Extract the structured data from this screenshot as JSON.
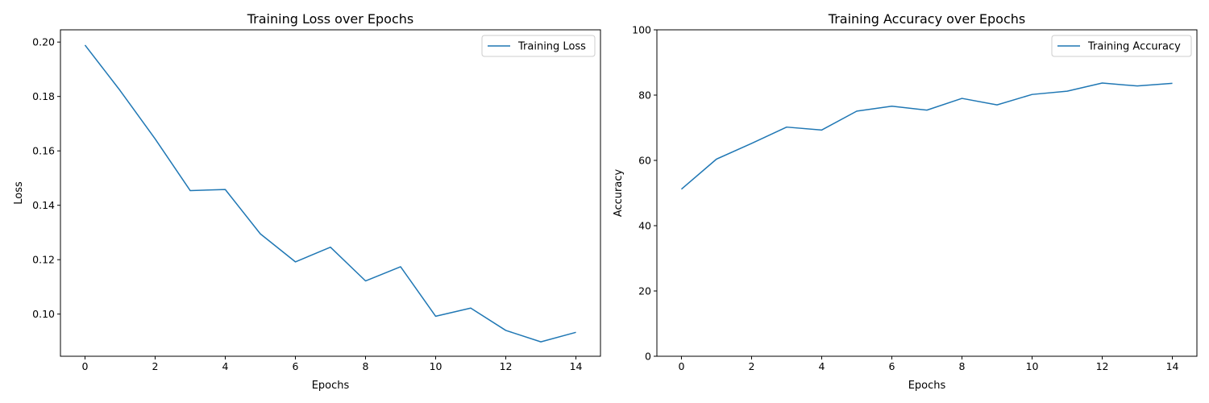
{
  "chart_data": [
    {
      "type": "line",
      "title": "Training Loss over Epochs",
      "xlabel": "Epochs",
      "ylabel": "Loss",
      "x": [
        0,
        1,
        2,
        3,
        4,
        5,
        6,
        7,
        8,
        9,
        10,
        11,
        12,
        13,
        14
      ],
      "xlim": [
        -0.7,
        14.7
      ],
      "ylim": [
        0.0845,
        0.2045
      ],
      "xticks": [
        0,
        2,
        4,
        6,
        8,
        10,
        12,
        14
      ],
      "xtick_labels": [
        "0",
        "2",
        "4",
        "6",
        "8",
        "10",
        "12",
        "14"
      ],
      "yticks": [
        0.1,
        0.12,
        0.14,
        0.16,
        0.18,
        0.2
      ],
      "ytick_labels": [
        "0.10",
        "0.12",
        "0.14",
        "0.16",
        "0.18",
        "0.20"
      ],
      "legend_position": "top-right",
      "grid": false,
      "series": [
        {
          "name": "Training Loss",
          "color": "#1f77b4",
          "values": [
            0.1989,
            0.1822,
            0.1644,
            0.1454,
            0.1458,
            0.1295,
            0.1192,
            0.1246,
            0.1122,
            0.1174,
            0.0992,
            0.1022,
            0.094,
            0.0898,
            0.0933
          ]
        }
      ]
    },
    {
      "type": "line",
      "title": "Training Accuracy over Epochs",
      "xlabel": "Epochs",
      "ylabel": "Accuracy",
      "x": [
        0,
        1,
        2,
        3,
        4,
        5,
        6,
        7,
        8,
        9,
        10,
        11,
        12,
        13,
        14
      ],
      "xlim": [
        -0.7,
        14.7
      ],
      "ylim": [
        0,
        100
      ],
      "xticks": [
        0,
        2,
        4,
        6,
        8,
        10,
        12,
        14
      ],
      "xtick_labels": [
        "0",
        "2",
        "4",
        "6",
        "8",
        "10",
        "12",
        "14"
      ],
      "yticks": [
        0,
        20,
        40,
        60,
        80,
        100
      ],
      "ytick_labels": [
        "0",
        "20",
        "40",
        "60",
        "80",
        "100"
      ],
      "legend_position": "top-right",
      "grid": false,
      "series": [
        {
          "name": "Training Accuracy",
          "color": "#1f77b4",
          "values": [
            51.2,
            60.4,
            65.2,
            70.2,
            69.3,
            75.1,
            76.6,
            75.4,
            79.0,
            77.0,
            80.2,
            81.2,
            83.7,
            82.8,
            83.6
          ]
        }
      ]
    }
  ]
}
